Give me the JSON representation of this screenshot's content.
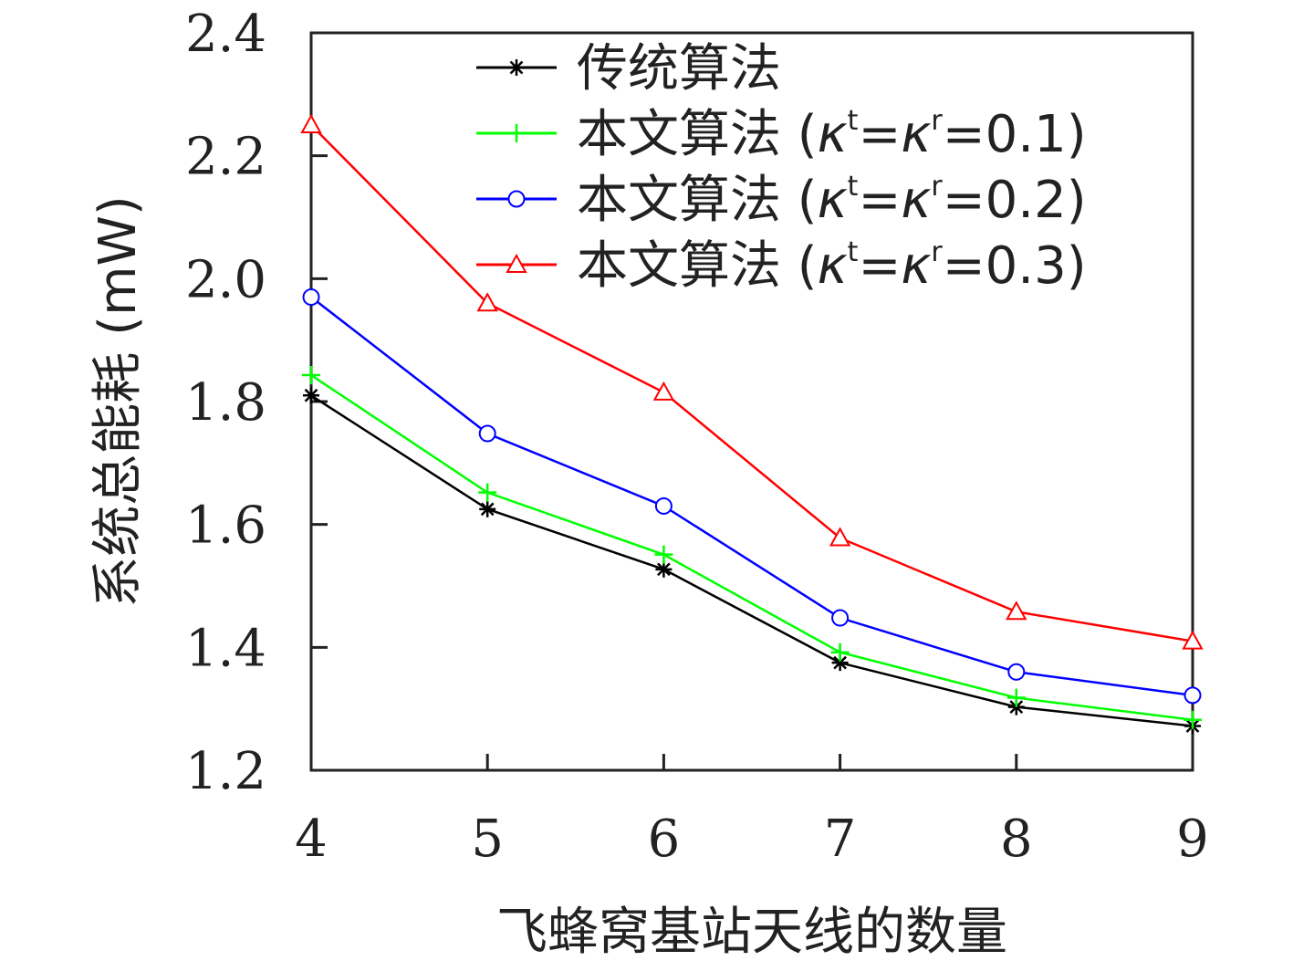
{
  "chart_data": {
    "type": "line",
    "xlabel": "飞蜂窝基站天线的数量",
    "ylabel": "系统总能耗 (mW)",
    "x": [
      4,
      5,
      6,
      7,
      8,
      9
    ],
    "xlim": [
      4,
      9
    ],
    "ylim": [
      1.2,
      2.4
    ],
    "xticks": [
      "4",
      "5",
      "6",
      "7",
      "8",
      "9"
    ],
    "yticks": [
      "1.2",
      "1.4",
      "1.6",
      "1.8",
      "2.0",
      "2.2",
      "2.4"
    ],
    "grid": false,
    "legend_position": "top",
    "series": [
      {
        "name": "传统算法",
        "color": "#000000",
        "marker": "asterisk",
        "values": [
          1.81,
          1.625,
          1.527,
          1.375,
          1.303,
          1.272
        ]
      },
      {
        "name": "本文算法 (κt=κr=0.1)",
        "color": "#00ff00",
        "marker": "plus",
        "values": [
          1.843,
          1.652,
          1.551,
          1.392,
          1.318,
          1.282
        ]
      },
      {
        "name": "本文算法 (κt=κr=0.2)",
        "color": "#0000ff",
        "marker": "circle",
        "values": [
          1.97,
          1.748,
          1.63,
          1.448,
          1.36,
          1.322
        ]
      },
      {
        "name": "本文算法 (κt=κr=0.3)",
        "color": "#ff0000",
        "marker": "triangle",
        "values": [
          2.25,
          1.96,
          1.815,
          1.578,
          1.458,
          1.41
        ]
      }
    ]
  },
  "legend": [
    {
      "prefix": "传统算法",
      "kappa": "",
      "sup_t": "",
      "sup_r": "",
      "value": ""
    },
    {
      "prefix": "本文算法 (",
      "kappa": "κ",
      "sup_t": "t",
      "sup_r": "r",
      "value": "=0.1)"
    },
    {
      "prefix": "本文算法 (",
      "kappa": "κ",
      "sup_t": "t",
      "sup_r": "r",
      "value": "=0.2)"
    },
    {
      "prefix": "本文算法 (",
      "kappa": "κ",
      "sup_t": "t",
      "sup_r": "r",
      "value": "=0.3)"
    }
  ]
}
